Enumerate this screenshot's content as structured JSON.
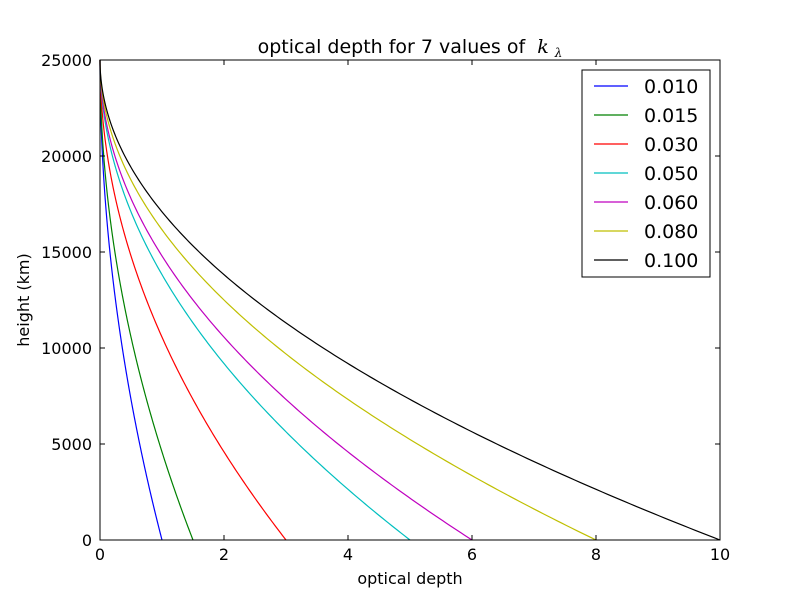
{
  "chart_data": {
    "type": "line",
    "title": "optical depth for 7 values of",
    "title_math": "k",
    "title_math_sub": "λ",
    "xlabel": "optical depth",
    "ylabel": "height (km)",
    "xlim": [
      0,
      10
    ],
    "ylim": [
      0,
      25000
    ],
    "xticks": [
      "0",
      "2",
      "4",
      "6",
      "8",
      "10"
    ],
    "yticks": [
      "0",
      "5000",
      "10000",
      "15000",
      "20000",
      "25000"
    ],
    "grid": false,
    "legend_placement": "top-right",
    "curve_model": "optical_depth = 100 * k * (1 - height/25000)^2",
    "series": [
      {
        "name": "0.010",
        "k": 0.01,
        "color": "#0000ff",
        "x_at_zero_height": 1.0
      },
      {
        "name": "0.015",
        "k": 0.015,
        "color": "#008000",
        "x_at_zero_height": 1.5
      },
      {
        "name": "0.030",
        "k": 0.03,
        "color": "#ff0000",
        "x_at_zero_height": 3.0
      },
      {
        "name": "0.050",
        "k": 0.05,
        "color": "#00bfbf",
        "x_at_zero_height": 5.0
      },
      {
        "name": "0.060",
        "k": 0.06,
        "color": "#bf00bf",
        "x_at_zero_height": 6.0
      },
      {
        "name": "0.080",
        "k": 0.08,
        "color": "#bfbf00",
        "x_at_zero_height": 8.0
      },
      {
        "name": "0.100",
        "k": 0.1,
        "color": "#000000",
        "x_at_zero_height": 10.0
      }
    ]
  }
}
